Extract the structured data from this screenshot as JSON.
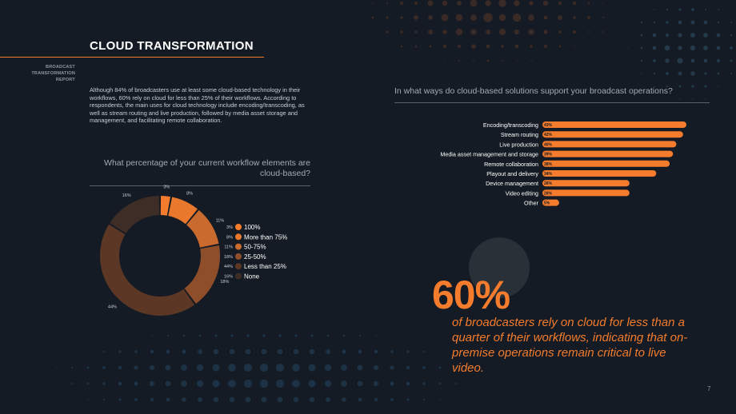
{
  "header": {
    "title": "CLOUD TRANSFORMATION",
    "badge_lines": [
      "BROADCAST",
      "TRANSFORMATION",
      "REPORT"
    ]
  },
  "intro": {
    "text": "Although 84% of broadcasters use at least some cloud-based technology in their workflows, 60% rely on cloud for less than 25% of their workflows. According to respondents, the main uses for cloud technology include encoding/transcoding, as well as stream routing and live production, followed by media asset storage and management, and facilitating remote collaboration."
  },
  "donut_question": "What percentage of your current workflow elements are cloud-based?",
  "bar_question": "In what ways do cloud-based solutions support your broadcast operations?",
  "highlight": {
    "number": "60%",
    "text": "of broadcasters rely on cloud for less than a quarter of their workflows, indicating that on-premise operations remain critical to live video."
  },
  "page_number": "7",
  "colors": {
    "background": "#141b24",
    "accent": "#f47c2c",
    "donut": [
      "#f47c2c",
      "#e9782d",
      "#c96a2e",
      "#8f4e2a",
      "#5c3726",
      "#3e2c26"
    ]
  },
  "chart_data": [
    {
      "type": "pie",
      "variant": "donut",
      "categories": [
        "100%",
        "More than 75%",
        "50-75%",
        "25-50%",
        "Less than 25%",
        "None"
      ],
      "values": [
        3,
        8,
        11,
        18,
        44,
        16
      ],
      "value_labels": [
        "3%",
        "8%",
        "11%",
        "18%",
        "44%",
        "16%"
      ],
      "legend": "right"
    },
    {
      "type": "bar",
      "orientation": "horizontal",
      "categories": [
        "Encoding/transcoding",
        "Stream routing",
        "Live production",
        "Media asset management and storage",
        "Remote collaboration",
        "Playout and delivery",
        "Device management",
        "Video editing",
        "Other"
      ],
      "values": [
        43,
        42,
        40,
        39,
        38,
        34,
        26,
        26,
        5
      ],
      "value_labels": [
        "43%",
        "42%",
        "40%",
        "39%",
        "38%",
        "34%",
        "26%",
        "26%",
        "5%"
      ]
    }
  ]
}
